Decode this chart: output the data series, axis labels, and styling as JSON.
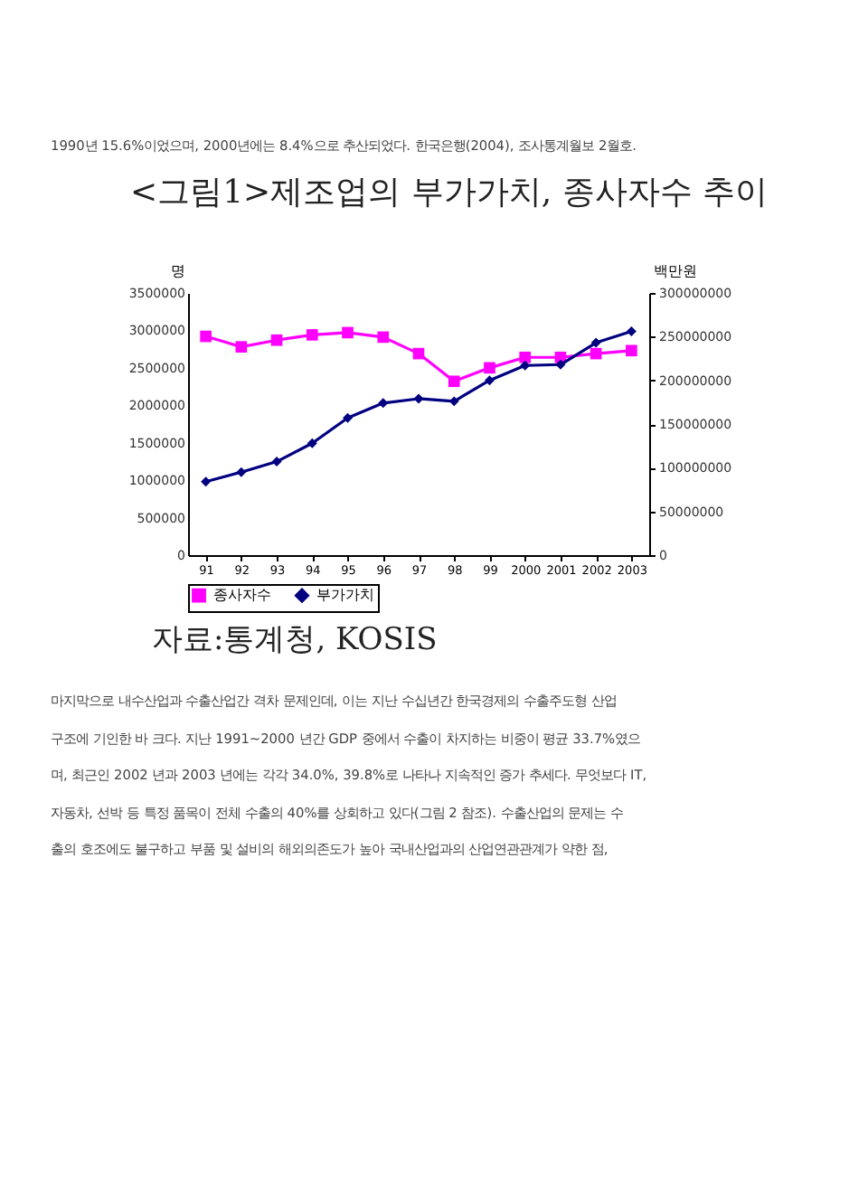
{
  "chart_data": {
    "type": "line",
    "title": "<그림1>제조업의 부가가치, 종사자수 추이",
    "ylabel": "명",
    "y2label": "백만원",
    "categories": [
      "91",
      "92",
      "93",
      "94",
      "95",
      "96",
      "97",
      "98",
      "99",
      "2000",
      "2001",
      "2002",
      "2003"
    ],
    "series": [
      {
        "name": "종사자수",
        "color": "#ff00ff",
        "marker": "square",
        "values": [
          2920000,
          2780000,
          2870000,
          2940000,
          2970000,
          2910000,
          2690000,
          2320000,
          2500000,
          2640000,
          2640000,
          2690000,
          2730000
        ]
      },
      {
        "name": "부가가치",
        "color": "#000080",
        "marker": "diamond",
        "axis": "y2",
        "values": [
          84000000,
          95000000,
          107000000,
          128000000,
          157000000,
          174000000,
          179000000,
          176000000,
          200000000,
          217000000,
          218000000,
          243000000,
          256000000
        ]
      }
    ],
    "ylim": [
      0,
      3500000
    ],
    "yticks": [
      0,
      500000,
      1000000,
      1500000,
      2000000,
      2500000,
      3000000,
      3500000
    ],
    "y2lim": [
      0,
      300000000
    ],
    "y2ticks": [
      0,
      50000000,
      100000000,
      150000000,
      200000000,
      250000000,
      300000000
    ],
    "grid": false,
    "legend": "bottom",
    "annotations": [
      "1990년 15.6%이었으며, 2000년에는 8.4%으로 추산되었다. 한국은행(2004), 조사통계월보 2월호.",
      "자료:통계청, KOSIS",
      "마지막으로 내수산업과 수출산업간 격차 문제인데, 이는 지난 수십년간 한국경제의 수출주도형 산업",
      "구조에 기인한 바 크다. 지난 1991~2000 년간 GDP 중에서 수출이 차지하는 비중이 평균 33.7%였으",
      "며, 최근인 2002 년과 2003 년에는 각각 34.0%, 39.8%로 나타나 지속적인 증가 추세다. 무엇보다 IT,",
      "자동차, 선박 등 특정 품목이 전체 수출의 40%를 상회하고 있다(그림 2 참조). 수출산업의 문제는 수",
      "출의 호조에도 불구하고 부품 및 설비의 해외의존도가 높아 국내산업과의 산업연관관계가 약한 점,"
    ]
  }
}
